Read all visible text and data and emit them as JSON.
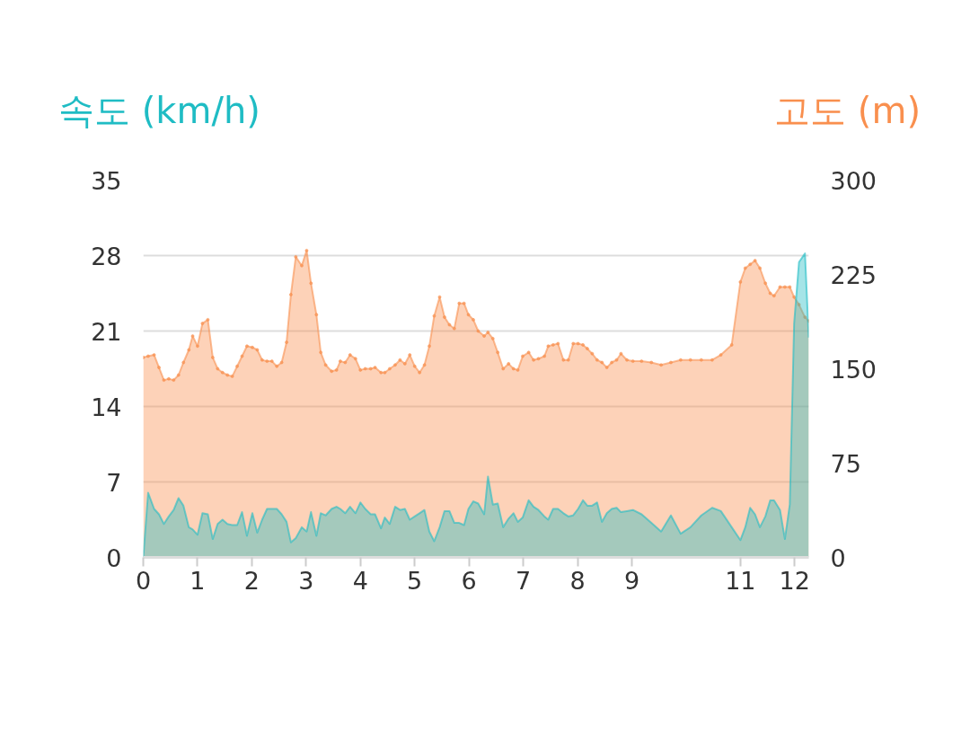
{
  "chart_data": {
    "type": "area",
    "ylabel": "속도 (km/h)",
    "y2label": "고도 (m)",
    "x": [
      0,
      0.09,
      0.2,
      0.29,
      0.38,
      0.47,
      0.56,
      0.65,
      0.74,
      0.84,
      0.91,
      1.0,
      1.09,
      1.19,
      1.28,
      1.37,
      1.46,
      1.55,
      1.64,
      1.73,
      1.82,
      1.91,
      2.01,
      2.1,
      2.19,
      2.28,
      2.37,
      2.46,
      2.55,
      2.64,
      2.72,
      2.81,
      2.92,
      3.01,
      3.09,
      3.19,
      3.27,
      3.36,
      3.47,
      3.56,
      3.63,
      3.72,
      3.81,
      3.91,
      4.0,
      4.09,
      4.19,
      4.27,
      4.38,
      4.45,
      4.54,
      4.64,
      4.73,
      4.82,
      4.91,
      5.0,
      5.09,
      5.18,
      5.27,
      5.36,
      5.46,
      5.55,
      5.64,
      5.73,
      5.82,
      5.91,
      5.99,
      6.08,
      6.17,
      6.28,
      6.35,
      6.44,
      6.53,
      6.63,
      6.73,
      6.82,
      6.9,
      6.99,
      7.1,
      7.19,
      7.28,
      7.39,
      7.46,
      7.55,
      7.64,
      7.74,
      7.83,
      7.92,
      8.01,
      8.1,
      8.18,
      8.27,
      8.36,
      8.45,
      8.54,
      8.63,
      8.72,
      8.8,
      8.91,
      9.02,
      9.18,
      9.36,
      9.54,
      9.72,
      9.9,
      10.08,
      10.28,
      10.48,
      10.64,
      10.84,
      11.0,
      11.09,
      11.18,
      11.27,
      11.36,
      11.46,
      11.55,
      11.62,
      11.73,
      11.82,
      11.91,
      11.99,
      12.08,
      12.19,
      12.26
    ],
    "xlim": [
      0,
      12.26
    ],
    "xticks": [
      0,
      1,
      2,
      3,
      4,
      5,
      6,
      7,
      8,
      9,
      11,
      12
    ],
    "ylim": [
      0,
      35
    ],
    "yticks": [
      0,
      7,
      14,
      21,
      28,
      35
    ],
    "y2lim": [
      0,
      300
    ],
    "y2ticks": [
      0,
      75,
      150,
      225,
      300
    ],
    "grid": "y",
    "series": [
      {
        "axis": "y2",
        "color": "#f98f4e",
        "marker": "circle",
        "values": [
          159,
          160,
          161,
          151,
          141,
          142,
          141,
          145,
          155,
          165,
          176,
          168,
          186,
          189,
          159,
          150,
          147,
          145,
          144,
          152,
          160,
          168,
          167,
          165,
          157,
          156,
          156,
          152,
          155,
          171,
          209,
          239,
          232,
          244,
          218,
          193,
          163,
          153,
          148,
          149,
          156,
          155,
          161,
          158,
          149,
          150,
          150,
          151,
          147,
          147,
          150,
          153,
          157,
          154,
          161,
          152,
          147,
          153,
          168,
          192,
          207,
          191,
          185,
          182,
          202,
          202,
          193,
          189,
          180,
          176,
          179,
          174,
          163,
          150,
          154,
          150,
          149,
          160,
          163,
          157,
          158,
          160,
          168,
          169,
          170,
          157,
          157,
          170,
          170,
          169,
          166,
          162,
          157,
          155,
          151,
          155,
          157,
          162,
          157,
          156,
          156,
          155,
          153,
          155,
          157,
          157,
          157,
          157,
          161,
          169,
          219,
          230,
          233,
          236,
          230,
          218,
          210,
          208,
          215,
          215,
          215,
          207,
          201,
          191,
          188
        ]
      },
      {
        "axis": "y",
        "color": "#1fbcc4",
        "marker": "none",
        "values": [
          0,
          6.0,
          4.5,
          4.0,
          3.1,
          3.8,
          4.4,
          5.5,
          4.8,
          2.8,
          2.6,
          2.1,
          4.1,
          4.0,
          1.7,
          3.1,
          3.5,
          3.1,
          3.0,
          3.0,
          4.2,
          2.0,
          4.1,
          2.3,
          3.5,
          4.5,
          4.5,
          4.5,
          4.0,
          3.3,
          1.4,
          1.8,
          2.8,
          2.4,
          4.2,
          2.0,
          4.1,
          3.9,
          4.5,
          4.7,
          4.5,
          4.1,
          4.7,
          4.1,
          5.1,
          4.5,
          4.0,
          4.0,
          2.7,
          3.7,
          3.1,
          4.7,
          4.4,
          4.5,
          3.5,
          3.8,
          4.1,
          4.4,
          2.4,
          1.5,
          2.8,
          4.3,
          4.3,
          3.2,
          3.2,
          3.0,
          4.5,
          5.2,
          5.0,
          4.0,
          7.5,
          4.9,
          5.0,
          2.8,
          3.6,
          4.1,
          3.3,
          3.7,
          5.3,
          4.7,
          4.4,
          3.8,
          3.5,
          4.5,
          4.5,
          4.1,
          3.8,
          3.9,
          4.5,
          5.3,
          4.8,
          4.8,
          5.1,
          3.3,
          4.1,
          4.5,
          4.6,
          4.2,
          4.3,
          4.4,
          4.0,
          3.2,
          2.4,
          3.9,
          2.2,
          2.8,
          3.9,
          4.6,
          4.3,
          2.8,
          1.6,
          2.8,
          4.6,
          4.0,
          2.8,
          3.8,
          5.3,
          5.3,
          4.4,
          1.7,
          4.9,
          21.7,
          27.4,
          28.2,
          20.4
        ]
      }
    ]
  }
}
